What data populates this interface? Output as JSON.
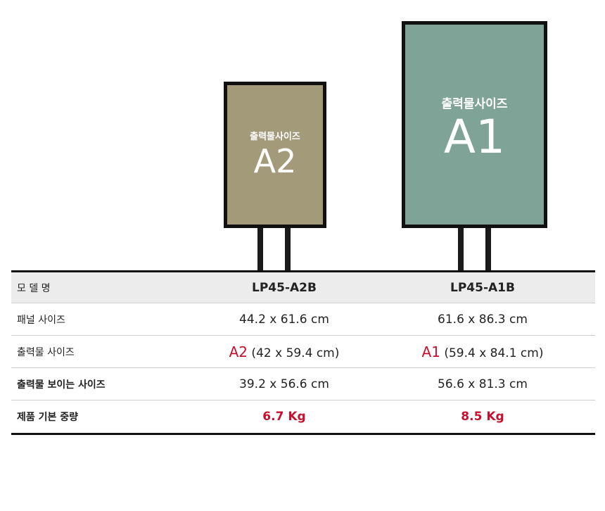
{
  "illustration": {
    "a2": {
      "caption": "출력물사이즈",
      "size": "A2",
      "color": "#a39a7a"
    },
    "a1": {
      "caption": "출력물사이즈",
      "size": "A1",
      "color": "#7fa396"
    }
  },
  "table": {
    "header": {
      "label": "모 델 명",
      "a2": "LP45-A2B",
      "a1": "LP45-A1B"
    },
    "panel_size": {
      "label": "패널 사이즈",
      "a2": "44.2 x 61.6 cm",
      "a1": "61.6 x 86.3 cm"
    },
    "print_size": {
      "label": "출력물 사이즈",
      "a2_code": "A2",
      "a2_dims": " (42 x 59.4 cm)",
      "a1_code": "A1",
      "a1_dims": " (59.4 x 84.1 cm)"
    },
    "visible_size": {
      "label": "출력물 보이는 사이즈",
      "a2": "39.2 x 56.6 cm",
      "a1": "56.6 x 81.3 cm"
    },
    "weight": {
      "label": "제품 기본 중량",
      "a2": "6.7 Kg",
      "a1": "8.5 Kg"
    }
  },
  "accent_color": "#c8102e"
}
